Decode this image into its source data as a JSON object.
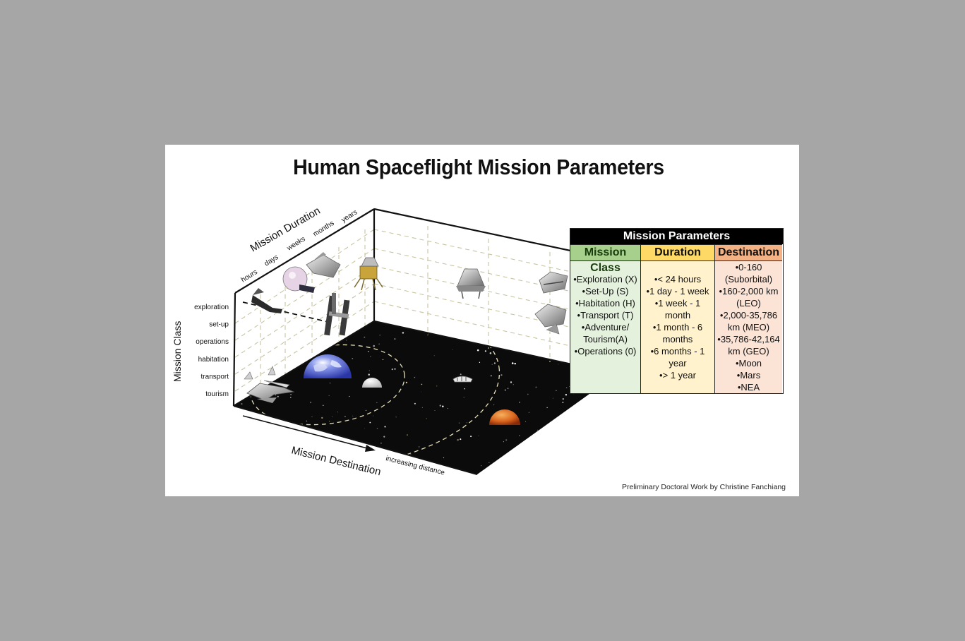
{
  "title": "Human Spaceflight Mission Parameters",
  "axes": {
    "duration_title": "Mission Duration",
    "duration_ticks": [
      "hours",
      "days",
      "weeks",
      "months",
      "years"
    ],
    "class_title": "Mission Class",
    "class_ticks": [
      "exploration",
      "set-up",
      "operations",
      "habitation",
      "transport",
      "tourism"
    ],
    "destination_title": "Mission Destination",
    "destination_note": "increasing distance"
  },
  "parameters": {
    "title": "Mission Parameters",
    "mission_class": {
      "header": "Mission Class",
      "items": [
        "•Exploration (X)",
        "•Set-Up (S)",
        "•Habitation (H)",
        "•Transport (T)",
        "•Adventure/\nTourism(A)",
        "•Operations (0)"
      ]
    },
    "duration": {
      "header": "Duration",
      "items": [
        "•< 24 hours",
        "•1 day - 1 week",
        "•1 week - 1 month",
        "•1 month - 6\nmonths",
        "•6 months - 1 year",
        "•> 1 year"
      ]
    },
    "destination": {
      "header": "Destination",
      "items": [
        "•0-160\n(Suborbital)",
        "•160-2,000 km\n(LEO)",
        "•2,000-35,786\nkm (MEO)",
        "•35,786-42,164\nkm (GEO)",
        "•Moon",
        "•Mars",
        "•NEA"
      ]
    }
  },
  "credit": "Preliminary Doctoral Work by Christine Fanchiang",
  "colors": {
    "class_header": "#a8d08d",
    "class_body": "#e4f1dd",
    "duration_header": "#ffd966",
    "duration_body": "#fff2cc",
    "destination_header": "#f4b183",
    "destination_body": "#fbe3d6",
    "earth": "#5a6fd6",
    "mars": "#d9641e",
    "space": "#0b0b0b"
  },
  "icons": [
    "spacecraft-icon",
    "space-station-icon",
    "lunar-lander-icon",
    "capsule-icon",
    "earth-dome-icon",
    "moon-dome-icon",
    "mars-dome-icon",
    "asteroid-icon",
    "spaceplane-icon"
  ]
}
